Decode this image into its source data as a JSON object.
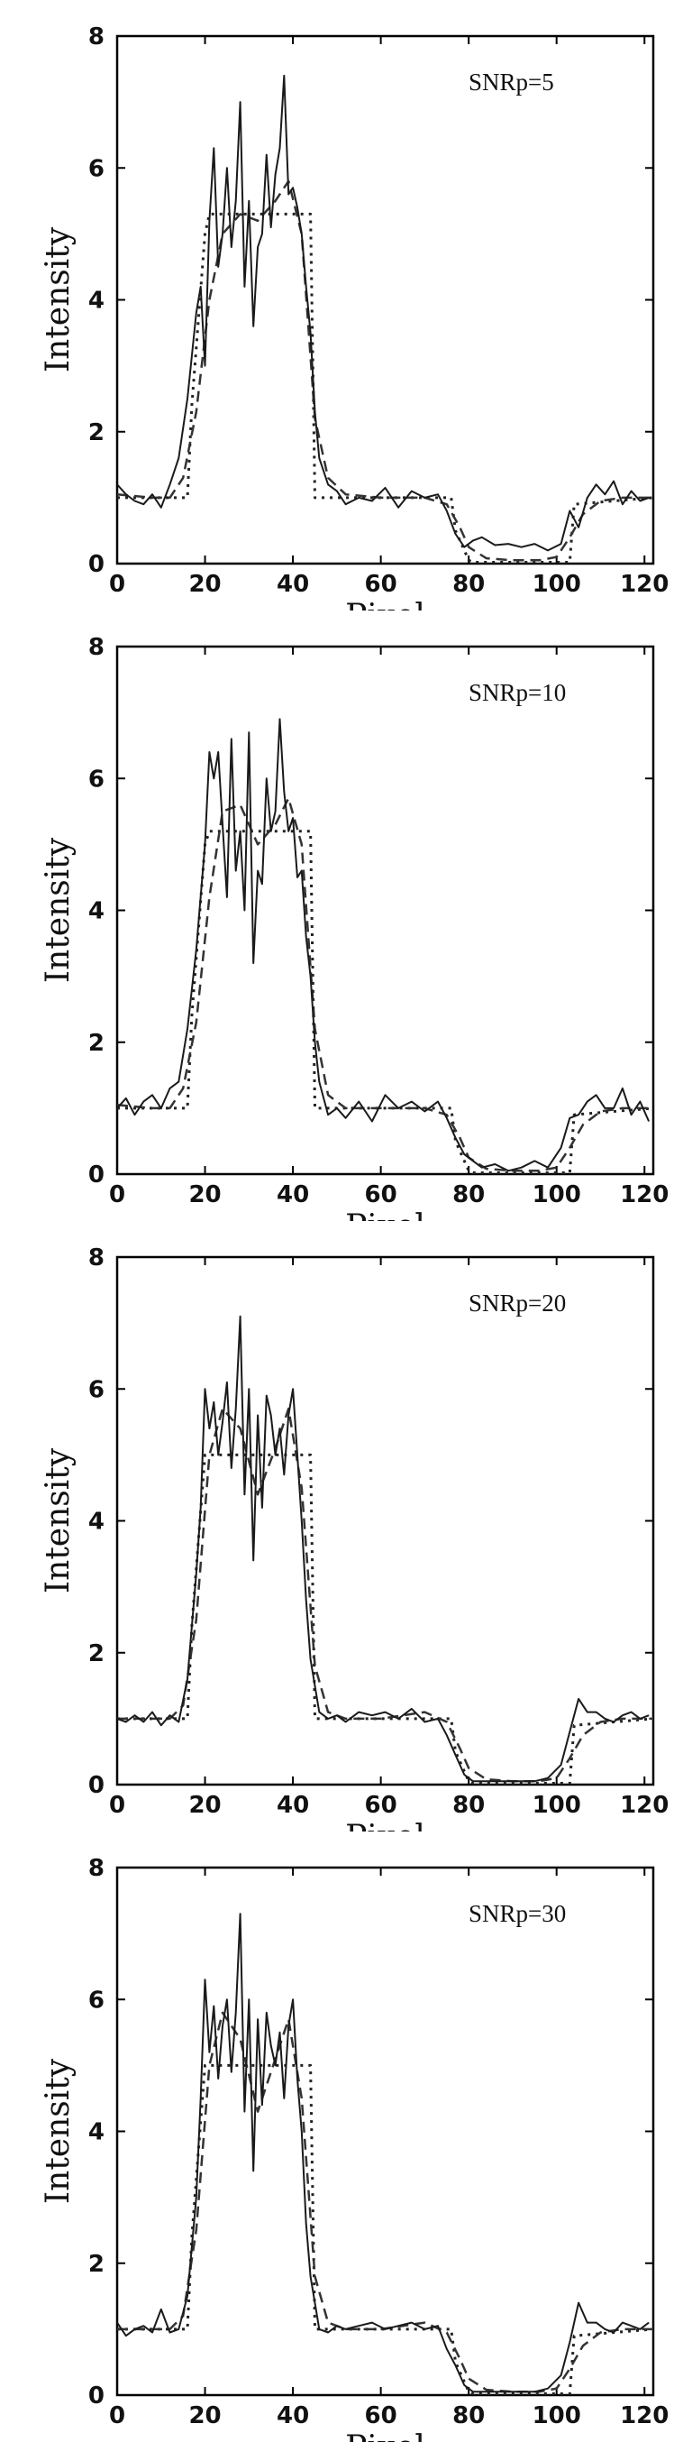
{
  "styles": {
    "axis_color": "#000000",
    "noisy_color": "#1a1a1a",
    "smooth_color": "#333333",
    "truth_color": "#222222"
  },
  "chart_data": [
    {
      "type": "line",
      "annotation": "SNRp=5",
      "xlabel": "Pixel",
      "ylabel": "Intensity",
      "xlim": [
        0,
        122
      ],
      "ylim": [
        0,
        8
      ],
      "xticks": [
        0,
        20,
        40,
        60,
        80,
        100,
        120
      ],
      "yticks": [
        0,
        2,
        4,
        6,
        8
      ],
      "grid": false,
      "series": [
        {
          "style": "dotted",
          "x": [
            0,
            16,
            17,
            20,
            21,
            44,
            45,
            76,
            77,
            80,
            81,
            103,
            104,
            122
          ],
          "y": [
            1,
            1,
            2.4,
            5,
            5.3,
            5.3,
            1,
            1,
            0.5,
            0.05,
            0.02,
            0.02,
            0.9,
            1
          ]
        },
        {
          "style": "dashed",
          "x": [
            0,
            8,
            12,
            15,
            18,
            21,
            24,
            28,
            32,
            36,
            39,
            42,
            45,
            48,
            52,
            60,
            70,
            75,
            78,
            80,
            84,
            90,
            96,
            100,
            103,
            106,
            110,
            115,
            122
          ],
          "y": [
            1.05,
            1,
            1,
            1.3,
            2.3,
            4,
            5,
            5.3,
            5.2,
            5.5,
            5.8,
            5,
            2.2,
            1.3,
            1.05,
            1,
            1,
            0.9,
            0.55,
            0.25,
            0.08,
            0.05,
            0.05,
            0.1,
            0.4,
            0.75,
            0.95,
            1,
            1
          ]
        },
        {
          "style": "solid",
          "x": [
            0,
            2,
            4,
            6,
            8,
            10,
            12,
            14,
            16,
            18,
            19,
            20,
            21,
            22,
            23,
            24,
            25,
            26,
            27,
            28,
            29,
            30,
            31,
            32,
            33,
            34,
            35,
            36,
            37,
            38,
            39,
            40,
            41,
            42,
            43,
            44,
            45,
            46,
            48,
            50,
            52,
            55,
            58,
            61,
            64,
            67,
            70,
            73,
            75,
            77,
            79,
            81,
            83,
            86,
            89,
            92,
            95,
            98,
            101,
            103,
            105,
            107,
            109,
            111,
            113,
            115,
            117,
            119,
            121
          ],
          "y": [
            1.2,
            1.05,
            0.95,
            0.9,
            1.05,
            0.85,
            1.2,
            1.6,
            2.5,
            3.8,
            4.2,
            3.0,
            5.2,
            6.3,
            4.5,
            5.0,
            6.0,
            4.8,
            5.5,
            7.0,
            4.2,
            5.5,
            3.6,
            4.8,
            5.0,
            6.2,
            5.1,
            5.9,
            6.3,
            7.4,
            5.6,
            5.7,
            5.4,
            5.0,
            4.2,
            3.5,
            2.3,
            1.6,
            1.2,
            1.1,
            0.9,
            1.0,
            0.95,
            1.15,
            0.85,
            1.1,
            1.0,
            1.05,
            0.8,
            0.45,
            0.25,
            0.35,
            0.4,
            0.28,
            0.3,
            0.25,
            0.3,
            0.2,
            0.3,
            0.8,
            0.55,
            1.0,
            1.2,
            1.05,
            1.25,
            0.9,
            1.1,
            0.95,
            1.0
          ]
        }
      ]
    },
    {
      "type": "line",
      "annotation": "SNRp=10",
      "xlabel": "Pixel",
      "ylabel": "Intensity",
      "xlim": [
        0,
        122
      ],
      "ylim": [
        0,
        8
      ],
      "xticks": [
        0,
        20,
        40,
        60,
        80,
        100,
        120
      ],
      "yticks": [
        0,
        2,
        4,
        6,
        8
      ],
      "grid": false,
      "series": [
        {
          "style": "dotted",
          "x": [
            0,
            16,
            17,
            20,
            21,
            44,
            45,
            76,
            77,
            80,
            81,
            103,
            104,
            122
          ],
          "y": [
            1,
            1,
            2.4,
            5,
            5.2,
            5.2,
            1,
            1,
            0.5,
            0.05,
            0.02,
            0.02,
            0.9,
            1
          ]
        },
        {
          "style": "dashed",
          "x": [
            0,
            8,
            12,
            15,
            18,
            21,
            24,
            28,
            32,
            36,
            39,
            42,
            45,
            48,
            52,
            60,
            70,
            75,
            78,
            80,
            84,
            90,
            96,
            100,
            103,
            106,
            110,
            115,
            122
          ],
          "y": [
            1.05,
            1,
            1,
            1.3,
            2.3,
            4.2,
            5.5,
            5.6,
            5,
            5.3,
            5.7,
            5,
            2.2,
            1.2,
            1.0,
            1,
            1,
            0.9,
            0.55,
            0.25,
            0.08,
            0.05,
            0.05,
            0.1,
            0.4,
            0.75,
            0.95,
            1,
            1
          ]
        },
        {
          "style": "solid",
          "x": [
            0,
            2,
            4,
            6,
            8,
            10,
            12,
            14,
            16,
            18,
            20,
            21,
            22,
            23,
            24,
            25,
            26,
            27,
            28,
            29,
            30,
            31,
            32,
            33,
            34,
            35,
            36,
            37,
            38,
            39,
            40,
            41,
            42,
            43,
            44,
            45,
            46,
            48,
            50,
            52,
            55,
            58,
            61,
            64,
            67,
            70,
            73,
            75,
            77,
            79,
            81,
            83,
            86,
            89,
            92,
            95,
            98,
            101,
            103,
            105,
            107,
            109,
            111,
            113,
            115,
            117,
            119,
            121
          ],
          "y": [
            1.0,
            1.15,
            0.9,
            1.1,
            1.2,
            1.0,
            1.3,
            1.4,
            2.2,
            3.4,
            5.0,
            6.4,
            6.0,
            6.4,
            5.3,
            4.2,
            6.6,
            4.6,
            5.2,
            4.0,
            6.7,
            3.2,
            4.6,
            4.4,
            6.0,
            5.2,
            5.5,
            6.9,
            5.8,
            5.2,
            5.4,
            4.5,
            4.6,
            3.6,
            3.0,
            2.0,
            1.4,
            0.9,
            1.0,
            0.85,
            1.1,
            0.8,
            1.2,
            1.0,
            1.1,
            0.95,
            1.1,
            0.85,
            0.55,
            0.3,
            0.2,
            0.1,
            0.15,
            0.05,
            0.1,
            0.2,
            0.1,
            0.4,
            0.85,
            0.9,
            1.1,
            1.2,
            1.0,
            1.0,
            1.3,
            0.9,
            1.1,
            0.8
          ]
        }
      ]
    },
    {
      "type": "line",
      "annotation": "SNRp=20",
      "xlabel": "Pixel",
      "ylabel": "Intensity",
      "xlim": [
        0,
        122
      ],
      "ylim": [
        0,
        8
      ],
      "xticks": [
        0,
        20,
        40,
        60,
        80,
        100,
        120
      ],
      "yticks": [
        0,
        2,
        4,
        6,
        8
      ],
      "grid": false,
      "series": [
        {
          "style": "dotted",
          "x": [
            0,
            16,
            17,
            20,
            21,
            44,
            45,
            76,
            77,
            80,
            81,
            103,
            104,
            122
          ],
          "y": [
            1,
            1,
            2.4,
            5,
            5.0,
            5.0,
            1,
            1,
            0.5,
            0.05,
            0.02,
            0.02,
            0.9,
            1
          ]
        },
        {
          "style": "dashed",
          "x": [
            0,
            8,
            12,
            15,
            18,
            21,
            24,
            28,
            32,
            36,
            39,
            42,
            45,
            48,
            52,
            60,
            70,
            75,
            78,
            80,
            84,
            90,
            96,
            100,
            103,
            106,
            110,
            115,
            122
          ],
          "y": [
            1.0,
            1,
            1,
            1.2,
            2.5,
            5.0,
            5.7,
            5.4,
            4.4,
            5.1,
            5.7,
            4.5,
            1.8,
            1.1,
            1.0,
            1,
            1.1,
            0.95,
            0.55,
            0.25,
            0.08,
            0.05,
            0.05,
            0.1,
            0.4,
            0.75,
            0.95,
            1,
            1
          ]
        },
        {
          "style": "solid",
          "x": [
            0,
            2,
            4,
            6,
            8,
            10,
            12,
            14,
            16,
            18,
            19,
            20,
            21,
            22,
            23,
            24,
            25,
            26,
            27,
            28,
            29,
            30,
            31,
            32,
            33,
            34,
            35,
            36,
            37,
            38,
            39,
            40,
            41,
            42,
            43,
            44,
            46,
            48,
            50,
            52,
            55,
            58,
            61,
            64,
            67,
            70,
            73,
            75,
            77,
            79,
            81,
            83,
            86,
            89,
            92,
            95,
            98,
            101,
            103,
            105,
            107,
            109,
            111,
            113,
            115,
            117,
            119,
            121
          ],
          "y": [
            1.0,
            0.95,
            1.05,
            0.95,
            1.1,
            0.9,
            1.05,
            0.95,
            1.6,
            3.2,
            4.2,
            6.0,
            5.4,
            5.8,
            5.0,
            5.5,
            6.1,
            4.8,
            5.7,
            7.1,
            4.4,
            6.0,
            3.4,
            5.6,
            4.2,
            5.9,
            5.6,
            5.0,
            5.4,
            4.7,
            5.6,
            6.0,
            5.0,
            4.0,
            2.8,
            1.9,
            1.1,
            1.0,
            1.05,
            0.95,
            1.1,
            1.05,
            1.1,
            1.0,
            1.15,
            0.95,
            1.0,
            0.75,
            0.45,
            0.15,
            0.05,
            0.05,
            0.05,
            0.05,
            0.05,
            0.05,
            0.1,
            0.3,
            0.8,
            1.3,
            1.1,
            1.1,
            1.0,
            0.95,
            1.05,
            1.1,
            1.0,
            1.05
          ]
        }
      ]
    },
    {
      "type": "line",
      "annotation": "SNRp=30",
      "xlabel": "Pixel",
      "ylabel": "Intensity",
      "xlim": [
        0,
        122
      ],
      "ylim": [
        0,
        8
      ],
      "xticks": [
        0,
        20,
        40,
        60,
        80,
        100,
        120
      ],
      "yticks": [
        0,
        2,
        4,
        6,
        8
      ],
      "grid": false,
      "series": [
        {
          "style": "dotted",
          "x": [
            0,
            16,
            17,
            20,
            21,
            44,
            45,
            76,
            77,
            80,
            81,
            103,
            104,
            122
          ],
          "y": [
            1,
            1,
            2.4,
            5,
            5.0,
            5.0,
            1,
            1,
            0.5,
            0.05,
            0.02,
            0.02,
            0.9,
            1
          ]
        },
        {
          "style": "dashed",
          "x": [
            0,
            8,
            12,
            15,
            18,
            21,
            24,
            28,
            32,
            36,
            39,
            42,
            45,
            48,
            52,
            60,
            70,
            75,
            78,
            80,
            84,
            90,
            96,
            100,
            103,
            106,
            110,
            115,
            122
          ],
          "y": [
            1.0,
            1,
            1,
            1.2,
            2.5,
            5.0,
            5.8,
            5.4,
            4.3,
            5.1,
            5.7,
            4.5,
            1.8,
            1.1,
            1.0,
            1,
            1.1,
            0.95,
            0.55,
            0.25,
            0.08,
            0.05,
            0.05,
            0.1,
            0.4,
            0.75,
            0.95,
            1,
            1
          ]
        },
        {
          "style": "solid",
          "x": [
            0,
            2,
            4,
            6,
            8,
            10,
            12,
            14,
            16,
            18,
            19,
            20,
            21,
            22,
            23,
            24,
            25,
            26,
            27,
            28,
            29,
            30,
            31,
            32,
            33,
            34,
            35,
            36,
            37,
            38,
            39,
            40,
            41,
            42,
            43,
            44,
            46,
            48,
            50,
            52,
            55,
            58,
            61,
            64,
            67,
            70,
            73,
            75,
            77,
            79,
            81,
            83,
            86,
            89,
            92,
            95,
            98,
            101,
            103,
            105,
            107,
            109,
            111,
            113,
            115,
            117,
            119,
            121
          ],
          "y": [
            1.1,
            0.9,
            1.0,
            1.05,
            0.95,
            1.3,
            0.95,
            1.0,
            1.5,
            3.0,
            4.5,
            6.3,
            5.2,
            5.9,
            4.8,
            5.6,
            6.0,
            4.9,
            5.8,
            7.3,
            4.3,
            6.0,
            3.4,
            5.7,
            4.4,
            5.8,
            5.3,
            5.0,
            5.5,
            4.5,
            5.6,
            6.0,
            4.8,
            4.0,
            2.6,
            1.8,
            1.0,
            0.95,
            1.05,
            1.0,
            1.05,
            1.1,
            1.0,
            1.05,
            1.1,
            1.0,
            1.05,
            0.7,
            0.45,
            0.15,
            0.05,
            0.05,
            0.05,
            0.05,
            0.05,
            0.05,
            0.1,
            0.3,
            0.8,
            1.4,
            1.1,
            1.1,
            1.0,
            0.95,
            1.1,
            1.05,
            1.0,
            1.1
          ]
        }
      ]
    }
  ]
}
